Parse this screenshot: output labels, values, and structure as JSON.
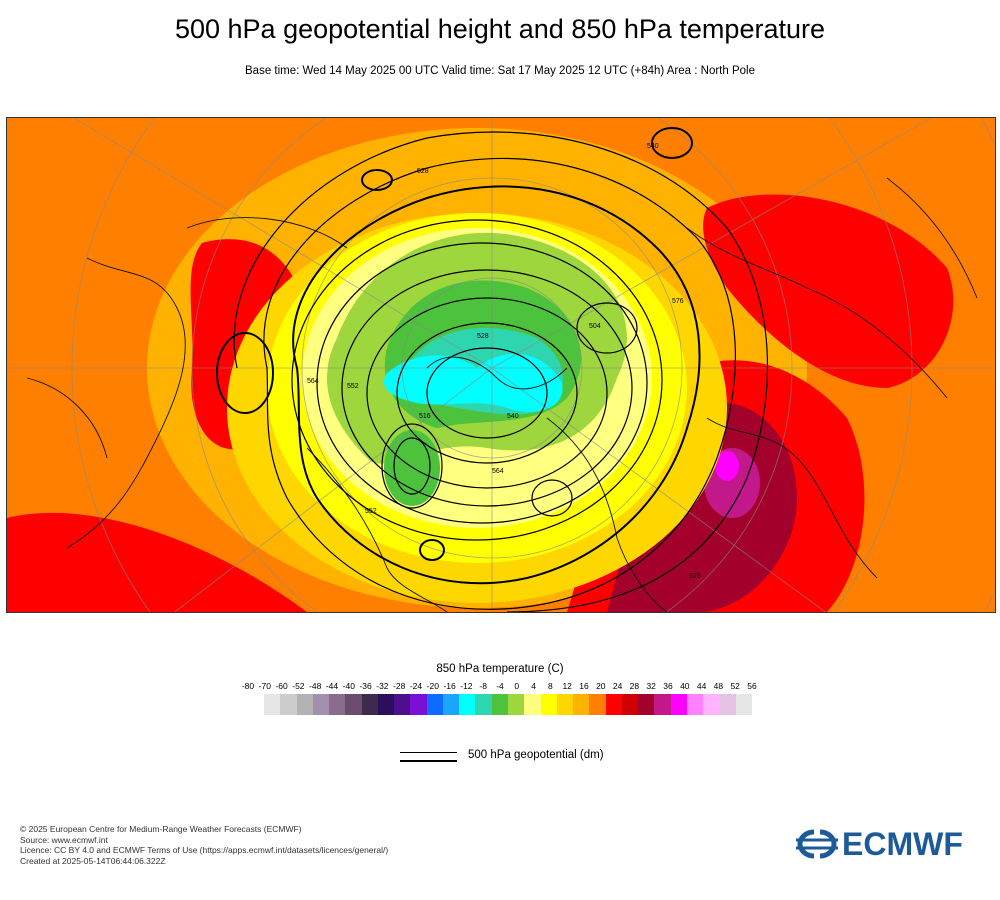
{
  "header": {
    "title": "500 hPa geopotential height and 850 hPa temperature",
    "subtitle": "Base time: Wed 14 May 2025 00 UTC Valid time: Sat 17 May 2025 12 UTC (+84h) Area : North Pole"
  },
  "map": {
    "contour_labels": [
      "552",
      "528",
      "540",
      "564",
      "576",
      "516",
      "504",
      "528",
      "552",
      "564",
      "576",
      "540"
    ]
  },
  "legend": {
    "title": "850 hPa temperature (C)",
    "ticks": [
      "-80",
      "-70",
      "-60",
      "-52",
      "-48",
      "-44",
      "-40",
      "-36",
      "-32",
      "-28",
      "-24",
      "-20",
      "-16",
      "-12",
      "-8",
      "-4",
      "0",
      "4",
      "8",
      "12",
      "16",
      "20",
      "24",
      "28",
      "32",
      "36",
      "40",
      "44",
      "48",
      "52",
      "56"
    ],
    "colors": [
      "#e6e6e6",
      "#cccccc",
      "#b3b3b3",
      "#a58fb0",
      "#8a6d8c",
      "#6b4c6e",
      "#3d2b4d",
      "#2b0f5c",
      "#4d0f8c",
      "#7a0fd6",
      "#0d6bff",
      "#1aa6ff",
      "#00ffff",
      "#2ed6b0",
      "#4dc23d",
      "#9ed63d",
      "#ffff80",
      "#ffff00",
      "#ffd700",
      "#ffb300",
      "#ff8000",
      "#ff0000",
      "#d10000",
      "#a3002b",
      "#c2188a",
      "#ff00ff",
      "#ff80ff",
      "#ffb3ff",
      "#e6c2e6",
      "#e6e6e6"
    ]
  },
  "geopotential_key": {
    "label": "500 hPa geopotential (dm)"
  },
  "footer": {
    "lines": [
      "© 2025 European Centre for Medium-Range Weather Forecasts (ECMWF)",
      "Source: www.ecmwf.int",
      "Licence: CC BY 4.0 and ECMWF Terms of Use (https://apps.ecmwf.int/datasets/licences/general/)",
      "Created at 2025-05-14T06:44:06.322Z"
    ]
  },
  "logo": {
    "text": "ECMWF",
    "color": "#1d5a9a"
  }
}
